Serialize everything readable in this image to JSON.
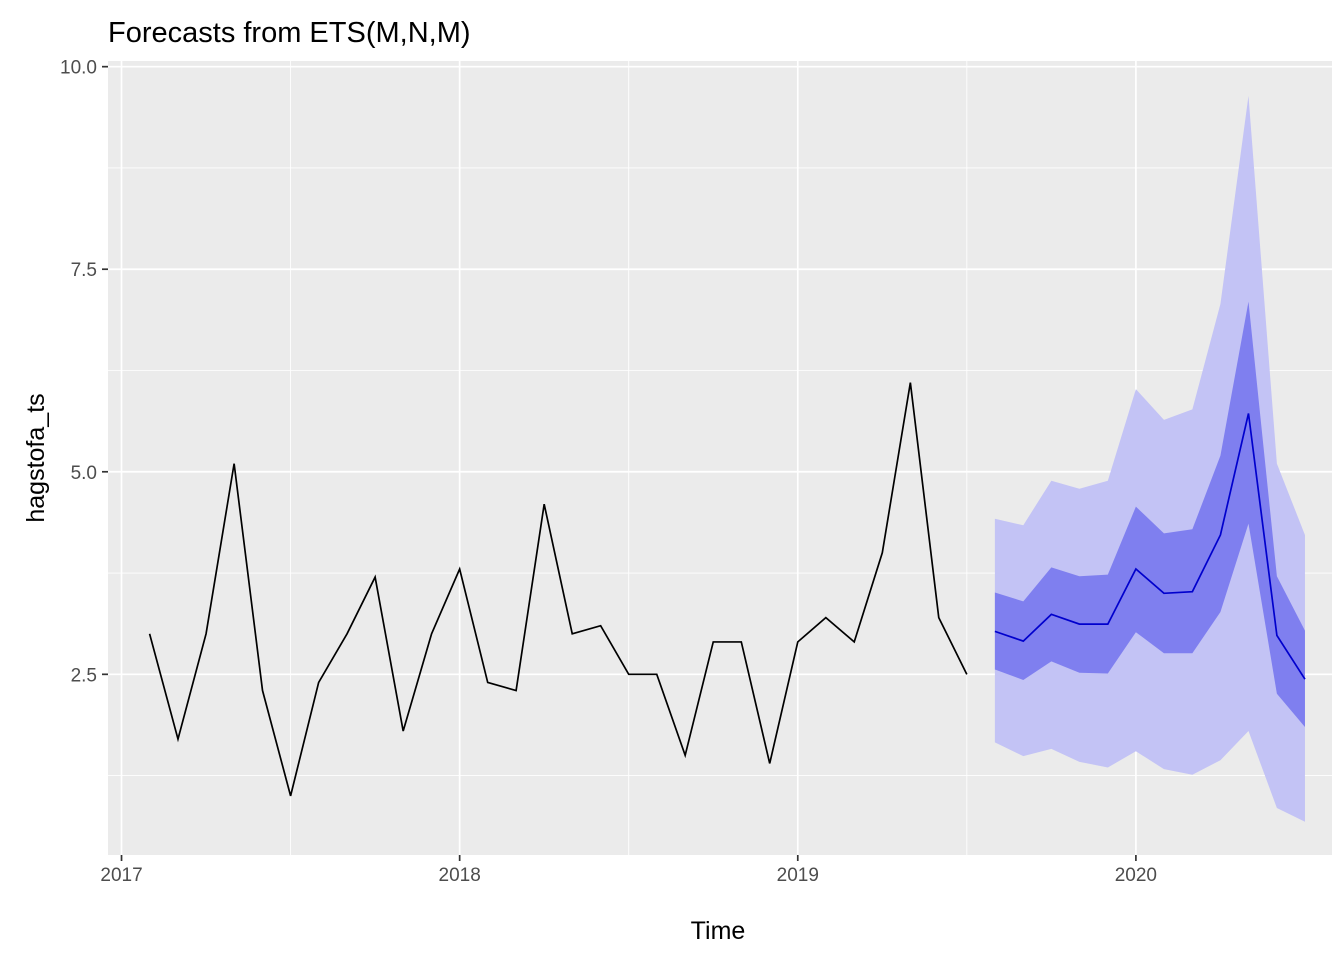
{
  "chart_data": {
    "type": "line",
    "title": "Forecasts from ETS(M,N,M)",
    "xlabel": "Time",
    "ylabel": "hagstofa_ts",
    "xlim": [
      2016.96,
      2020.58
    ],
    "ylim": [
      0.27,
      10.07
    ],
    "x_ticks": [
      2017,
      2018,
      2019,
      2020
    ],
    "x_tick_labels": [
      "2017",
      "2018",
      "2019",
      "2020"
    ],
    "y_ticks": [
      2.5,
      5.0,
      7.5,
      10.0
    ],
    "y_tick_labels": [
      "2.5",
      "5.0",
      "7.5",
      "10.0"
    ],
    "grid": true,
    "background": "#ebebeb",
    "colors": {
      "observed": "#000000",
      "forecast": "#0000cd",
      "band80": "#7f7fef",
      "band95": "#c3c3f5"
    },
    "observed": {
      "x": [
        2017.083,
        2017.167,
        2017.25,
        2017.333,
        2017.417,
        2017.5,
        2017.583,
        2017.667,
        2017.75,
        2017.833,
        2017.917,
        2018.0,
        2018.083,
        2018.167,
        2018.25,
        2018.333,
        2018.417,
        2018.5,
        2018.583,
        2018.667,
        2018.75,
        2018.833,
        2018.917,
        2019.0,
        2019.083,
        2019.167,
        2019.25,
        2019.333,
        2019.417,
        2019.5
      ],
      "y": [
        3.0,
        1.7,
        3.0,
        5.1,
        2.3,
        1.0,
        2.4,
        3.0,
        3.7,
        1.8,
        3.0,
        3.8,
        2.4,
        2.3,
        4.6,
        3.0,
        3.1,
        2.5,
        2.5,
        1.5,
        2.9,
        2.9,
        1.4,
        2.9,
        3.2,
        2.9,
        4.0,
        6.1,
        3.2,
        2.5
      ]
    },
    "forecast": {
      "x": [
        2019.583,
        2019.667,
        2019.75,
        2019.833,
        2019.917,
        2020.0,
        2020.083,
        2020.167,
        2020.25,
        2020.333,
        2020.417,
        2020.5
      ],
      "mean": [
        3.03,
        2.91,
        3.24,
        3.12,
        3.12,
        3.8,
        3.5,
        3.52,
        4.22,
        5.72,
        2.98,
        2.44
      ],
      "lo80": [
        2.56,
        2.43,
        2.66,
        2.52,
        2.51,
        3.02,
        2.76,
        2.76,
        3.27,
        4.36,
        2.26,
        1.85
      ],
      "hi80": [
        3.51,
        3.4,
        3.82,
        3.71,
        3.73,
        4.57,
        4.24,
        4.29,
        5.2,
        7.1,
        3.71,
        3.04
      ],
      "lo95": [
        1.66,
        1.49,
        1.58,
        1.42,
        1.35,
        1.55,
        1.33,
        1.26,
        1.44,
        1.8,
        0.85,
        0.68
      ],
      "hi95": [
        4.42,
        4.34,
        4.89,
        4.79,
        4.89,
        6.02,
        5.64,
        5.77,
        7.07,
        9.64,
        5.1,
        4.22
      ]
    }
  }
}
